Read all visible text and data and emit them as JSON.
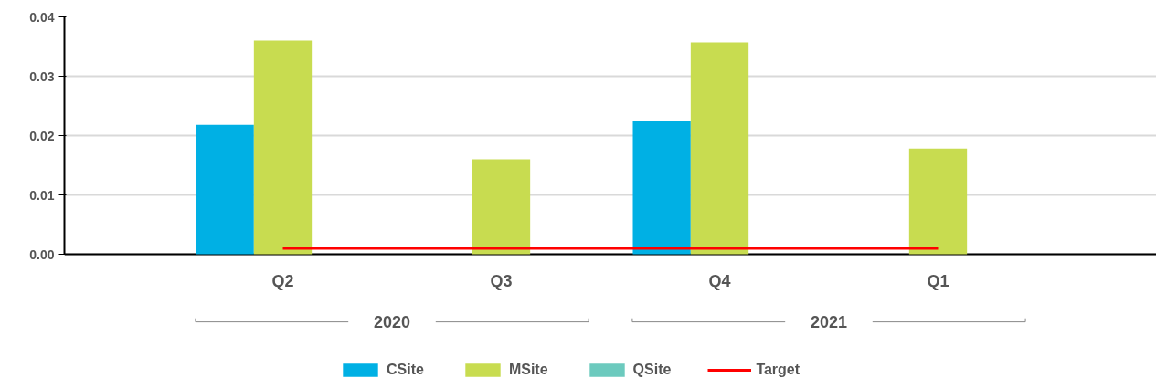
{
  "chart_data": {
    "type": "bar",
    "categories": [
      "Q2",
      "Q3",
      "Q4",
      "Q1"
    ],
    "series": [
      {
        "name": "CSite",
        "color": "#00b0e4",
        "values": [
          0.0218,
          null,
          0.0225,
          null
        ]
      },
      {
        "name": "MSite",
        "color": "#c8dc50",
        "values": [
          0.036,
          0.016,
          0.0357,
          0.0178
        ]
      },
      {
        "name": "QSite",
        "color": "#6ccabe",
        "values": [
          null,
          null,
          null,
          null
        ]
      },
      {
        "name": "Target",
        "type": "line",
        "color": "#ff0000",
        "values": [
          0.001,
          0.001,
          0.001,
          0.001
        ]
      }
    ],
    "annotations": [
      "2020",
      "2021"
    ],
    "ylim": [
      0,
      0.04
    ],
    "yticks": [
      {
        "value": 0,
        "label": "0.00"
      },
      {
        "value": 0.01,
        "label": "0.01"
      },
      {
        "value": 0.02,
        "label": "0.02"
      },
      {
        "value": 0.03,
        "label": "0.03"
      },
      {
        "value": 0.04,
        "label": "0.04"
      }
    ],
    "grid": "y",
    "legend": "bottom"
  }
}
